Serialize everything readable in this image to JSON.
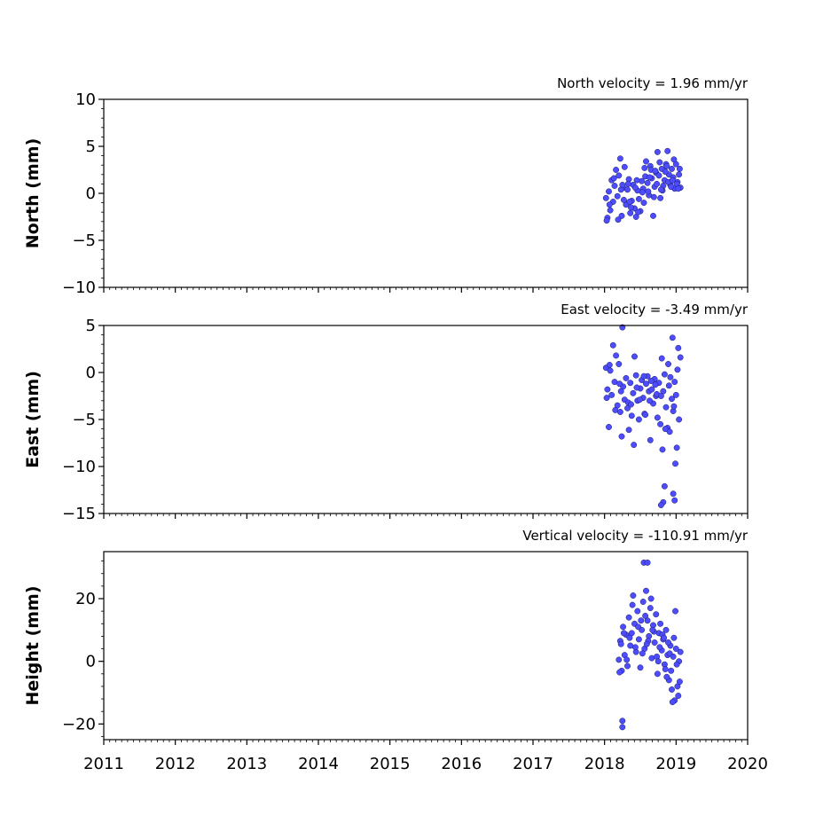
{
  "chart_data": [
    {
      "type": "scatter",
      "title": "North velocity = 1.96 mm/yr",
      "ylabel": "North (mm)",
      "xlim": [
        2011,
        2020
      ],
      "ylim": [
        -10,
        10
      ],
      "yticks": [
        10,
        5,
        0,
        -5,
        -10
      ],
      "ytick_labels": [
        "10",
        "5",
        "0",
        "−5",
        "−10"
      ],
      "color": "#4d4dff",
      "series": [
        {
          "x": [
            2018.02,
            2018.04,
            2018.06,
            2018.08,
            2018.1,
            2018.12,
            2018.14,
            2018.16,
            2018.18,
            2018.2,
            2018.22,
            2018.24,
            2018.26,
            2018.28,
            2018.3,
            2018.32,
            2018.34,
            2018.36,
            2018.38,
            2018.4,
            2018.42,
            2018.44,
            2018.46,
            2018.48,
            2018.5,
            2018.52,
            2018.54,
            2018.56,
            2018.58,
            2018.6,
            2018.62,
            2018.64,
            2018.66,
            2018.68,
            2018.7,
            2018.72,
            2018.74,
            2018.76,
            2018.78,
            2018.8,
            2018.82,
            2018.84,
            2018.86,
            2018.88,
            2018.9,
            2018.92,
            2018.94,
            2018.96,
            2018.98,
            2019.0,
            2019.02,
            2019.04,
            2019.06,
            2018.03,
            2018.07,
            2018.13,
            2018.19,
            2018.23,
            2018.27,
            2018.33,
            2018.37,
            2018.43,
            2018.47,
            2018.53,
            2018.57,
            2018.61,
            2018.65,
            2018.69,
            2018.73,
            2018.77,
            2018.81,
            2018.85,
            2018.89,
            2018.93,
            2018.97,
            2019.01,
            2019.05,
            2018.25,
            2018.35,
            2018.45,
            2018.55,
            2018.63,
            2018.71,
            2018.79,
            2018.87,
            2018.95,
            2019.03
          ],
          "y": [
            -0.5,
            -2.6,
            0.2,
            -1.8,
            1.4,
            -0.9,
            0.8,
            2.5,
            -0.3,
            1.9,
            3.7,
            -2.4,
            0.6,
            2.8,
            -1.2,
            0.4,
            1.5,
            -2.1,
            -0.8,
            0.9,
            -1.6,
            -2.5,
            0.3,
            -0.6,
            -1.9,
            1.3,
            0.5,
            2.7,
            3.4,
            1.1,
            -0.2,
            2.9,
            1.6,
            -2.4,
            0.7,
            2.2,
            4.4,
            1.9,
            -0.5,
            2.6,
            0.8,
            1.4,
            3.1,
            4.5,
            2.0,
            0.9,
            2.6,
            1.7,
            0.5,
            3.1,
            1.2,
            2.0,
            0.6,
            -2.9,
            -1.2,
            1.6,
            -2.8,
            0.4,
            -0.7,
            1.0,
            -1.5,
            0.6,
            -2.0,
            0.1,
            1.8,
            0.2,
            2.5,
            -0.4,
            1.0,
            3.3,
            0.3,
            2.3,
            1.2,
            0.7,
            3.6,
            1.0,
            2.6,
            0.9,
            -0.9,
            1.4,
            -1.0,
            1.7,
            2.4,
            0.4,
            2.9,
            1.4,
            0.5
          ]
        }
      ]
    },
    {
      "type": "scatter",
      "title": "East velocity = -3.49 mm/yr",
      "ylabel": "East (mm)",
      "xlim": [
        2011,
        2020
      ],
      "ylim": [
        -15,
        5
      ],
      "yticks": [
        5,
        0,
        -5,
        -10,
        -15
      ],
      "ytick_labels": [
        "5",
        "0",
        "−5",
        "−10",
        "−15"
      ],
      "color": "#4d4dff",
      "series": [
        {
          "x": [
            2018.02,
            2018.04,
            2018.06,
            2018.08,
            2018.1,
            2018.12,
            2018.14,
            2018.16,
            2018.18,
            2018.2,
            2018.22,
            2018.24,
            2018.26,
            2018.28,
            2018.3,
            2018.32,
            2018.34,
            2018.36,
            2018.38,
            2018.4,
            2018.42,
            2018.44,
            2018.46,
            2018.48,
            2018.5,
            2018.52,
            2018.54,
            2018.56,
            2018.58,
            2018.6,
            2018.62,
            2018.64,
            2018.66,
            2018.68,
            2018.7,
            2018.72,
            2018.74,
            2018.76,
            2018.78,
            2018.8,
            2018.82,
            2018.84,
            2018.86,
            2018.88,
            2018.9,
            2018.92,
            2018.94,
            2018.96,
            2018.98,
            2019.0,
            2019.02,
            2019.04,
            2019.06,
            2018.03,
            2018.07,
            2018.15,
            2018.21,
            2018.25,
            2018.33,
            2018.41,
            2018.49,
            2018.57,
            2018.65,
            2018.73,
            2018.81,
            2018.85,
            2018.91,
            2018.97,
            2019.01,
            2018.23,
            2018.37,
            2018.45,
            2018.55,
            2018.63,
            2018.71,
            2018.79,
            2018.89,
            2018.95,
            2019.03,
            2018.96,
            2018.84,
            2018.98,
            2018.82,
            2018.99,
            2018.79
          ],
          "y": [
            0.5,
            -1.8,
            -5.8,
            0.2,
            -2.4,
            2.9,
            -1.0,
            1.8,
            -3.5,
            0.9,
            -4.2,
            -6.8,
            -1.5,
            -2.9,
            -0.6,
            -3.8,
            -6.1,
            -1.1,
            -4.6,
            -2.2,
            1.7,
            -0.3,
            -3.0,
            -5.0,
            -1.7,
            -0.8,
            -2.7,
            -4.4,
            -1.2,
            -0.4,
            -2.0,
            -7.2,
            -1.8,
            -3.3,
            -0.7,
            -2.5,
            -4.8,
            -1.1,
            -5.5,
            1.5,
            -2.0,
            -0.2,
            -3.7,
            -5.9,
            -1.4,
            -0.5,
            -2.8,
            -4.1,
            -1.0,
            -2.4,
            0.3,
            -5.0,
            1.6,
            -2.7,
            0.8,
            -4.0,
            -1.2,
            4.8,
            -3.2,
            -7.7,
            -2.9,
            -4.5,
            -0.9,
            -2.3,
            -8.2,
            -6.0,
            -6.3,
            -3.6,
            -8.0,
            -2.0,
            -3.4,
            -1.6,
            -0.4,
            -3.0,
            -1.3,
            -2.5,
            0.9,
            3.7,
            2.6,
            -12.9,
            -12.1,
            -13.6,
            -13.8,
            -9.7,
            -14.1
          ]
        }
      ]
    },
    {
      "type": "scatter",
      "title": "Vertical velocity = -110.91 mm/yr",
      "ylabel": "Height (mm)",
      "xlim": [
        2011,
        2020
      ],
      "ylim": [
        -25,
        35
      ],
      "yticks": [
        20,
        0,
        -20
      ],
      "ytick_labels": [
        "20",
        "0",
        "−20"
      ],
      "color": "#4d4dff",
      "series": [
        {
          "x": [
            2018.2,
            2018.22,
            2018.24,
            2018.26,
            2018.28,
            2018.3,
            2018.32,
            2018.34,
            2018.36,
            2018.38,
            2018.4,
            2018.42,
            2018.44,
            2018.46,
            2018.48,
            2018.5,
            2018.52,
            2018.54,
            2018.56,
            2018.58,
            2018.6,
            2018.62,
            2018.64,
            2018.66,
            2018.68,
            2018.7,
            2018.72,
            2018.74,
            2018.76,
            2018.78,
            2018.8,
            2018.82,
            2018.84,
            2018.86,
            2018.88,
            2018.9,
            2018.92,
            2018.94,
            2018.96,
            2018.98,
            2019.0,
            2019.02,
            2019.04,
            2019.06,
            2018.21,
            2018.23,
            2018.27,
            2018.31,
            2018.35,
            2018.39,
            2018.43,
            2018.47,
            2018.53,
            2018.57,
            2018.61,
            2018.65,
            2018.69,
            2018.73,
            2018.77,
            2018.81,
            2018.85,
            2018.89,
            2018.93,
            2018.97,
            2019.01,
            2019.05,
            2018.25,
            2018.25,
            2018.55,
            2018.6,
            2018.99,
            2019.03,
            2018.51,
            2018.59,
            2018.67,
            2018.75,
            2018.83,
            2018.87,
            2018.91,
            2018.95
          ],
          "y": [
            0.5,
            6.5,
            -3.0,
            11.0,
            2.0,
            8.5,
            -1.5,
            14.0,
            5.0,
            9.0,
            21.0,
            12.0,
            3.0,
            16.0,
            7.0,
            -2.0,
            10.0,
            19.0,
            4.0,
            22.5,
            13.0,
            8.0,
            17.0,
            1.0,
            11.5,
            6.0,
            15.0,
            -4.0,
            9.0,
            12.0,
            3.5,
            7.0,
            -1.0,
            10.0,
            2.0,
            -6.0,
            5.0,
            -9.0,
            1.5,
            -12.5,
            4.0,
            -8.0,
            0.0,
            3.0,
            -3.5,
            5.5,
            9.0,
            0.5,
            7.5,
            18.0,
            4.5,
            11.0,
            2.5,
            14.5,
            6.5,
            20.0,
            9.5,
            1.5,
            4.5,
            8.5,
            -2.5,
            6.0,
            -3.0,
            7.5,
            -1.0,
            -6.5,
            -19.0,
            -21.0,
            31.5,
            31.5,
            16.0,
            -11.0,
            13.0,
            5.5,
            10.0,
            0.0,
            7.5,
            -5.0,
            2.5,
            -13.0
          ]
        }
      ]
    }
  ],
  "x_ticks": [
    "2011",
    "2012",
    "2013",
    "2014",
    "2015",
    "2016",
    "2017",
    "2018",
    "2019",
    "2020"
  ]
}
